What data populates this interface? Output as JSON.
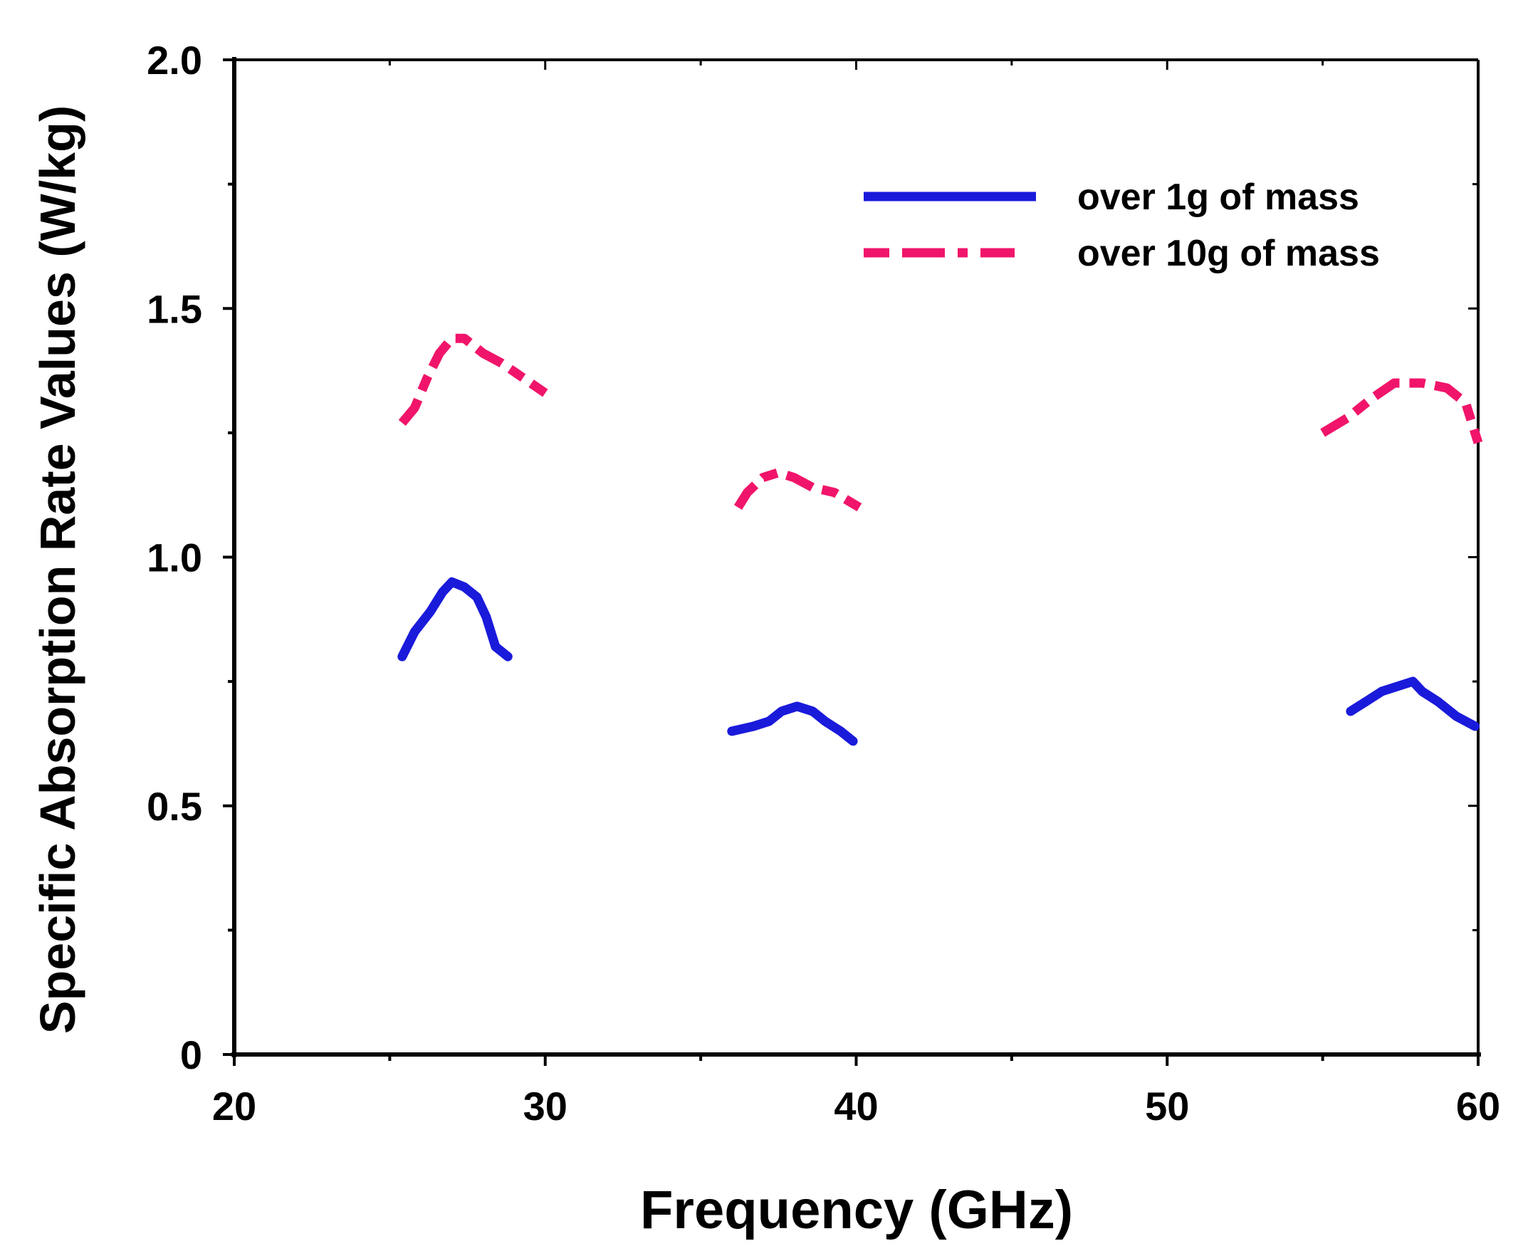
{
  "chart_data": {
    "type": "line",
    "title": "",
    "xlabel": "Frequency (GHz)",
    "ylabel": "Specific Absorption Rate Values (W/kg)",
    "xlim": [
      20,
      60
    ],
    "ylim": [
      0,
      2.0
    ],
    "x_ticks": [
      20,
      30,
      40,
      50,
      60
    ],
    "x_tick_labels": [
      "20",
      "30",
      "40",
      "50",
      "60"
    ],
    "y_ticks": [
      0,
      0.5,
      1.0,
      1.5,
      2.0
    ],
    "y_tick_labels": [
      "0",
      "0.5",
      "1.0",
      "1.5",
      "2.0"
    ],
    "grid": false,
    "legend_position": "top-right",
    "series": [
      {
        "name": "over 1g of mass",
        "color": "#1a1adb",
        "style": "solid",
        "segments": [
          [
            [
              25.4,
              0.8
            ],
            [
              25.8,
              0.85
            ],
            [
              26.3,
              0.89
            ],
            [
              26.7,
              0.93
            ],
            [
              27.0,
              0.95
            ],
            [
              27.4,
              0.94
            ],
            [
              27.8,
              0.92
            ],
            [
              28.1,
              0.88
            ],
            [
              28.4,
              0.82
            ],
            [
              28.8,
              0.8
            ]
          ],
          [
            [
              36.0,
              0.65
            ],
            [
              36.7,
              0.66
            ],
            [
              37.2,
              0.67
            ],
            [
              37.6,
              0.69
            ],
            [
              38.1,
              0.7
            ],
            [
              38.6,
              0.69
            ],
            [
              39.0,
              0.67
            ],
            [
              39.5,
              0.65
            ],
            [
              39.9,
              0.63
            ]
          ],
          [
            [
              55.9,
              0.69
            ],
            [
              56.4,
              0.71
            ],
            [
              56.9,
              0.73
            ],
            [
              57.4,
              0.74
            ],
            [
              57.9,
              0.75
            ],
            [
              58.2,
              0.73
            ],
            [
              58.7,
              0.71
            ],
            [
              59.3,
              0.68
            ],
            [
              59.9,
              0.66
            ]
          ]
        ]
      },
      {
        "name": "over 10g of mass",
        "color": "#f0156a",
        "style": "dashed",
        "segments": [
          [
            [
              25.4,
              1.27
            ],
            [
              25.8,
              1.3
            ],
            [
              26.2,
              1.36
            ],
            [
              26.6,
              1.41
            ],
            [
              27.0,
              1.44
            ],
            [
              27.4,
              1.44
            ],
            [
              28.0,
              1.41
            ],
            [
              28.6,
              1.39
            ],
            [
              29.3,
              1.36
            ],
            [
              30.0,
              1.33
            ]
          ],
          [
            [
              36.2,
              1.1
            ],
            [
              36.5,
              1.13
            ],
            [
              37.0,
              1.16
            ],
            [
              37.5,
              1.17
            ],
            [
              38.0,
              1.16
            ],
            [
              38.6,
              1.14
            ],
            [
              39.3,
              1.13
            ],
            [
              40.1,
              1.1
            ]
          ],
          [
            [
              55.0,
              1.25
            ],
            [
              55.8,
              1.28
            ],
            [
              56.6,
              1.32
            ],
            [
              57.3,
              1.35
            ],
            [
              58.2,
              1.35
            ],
            [
              59.0,
              1.34
            ],
            [
              59.6,
              1.31
            ],
            [
              60.0,
              1.23
            ]
          ]
        ]
      }
    ]
  }
}
